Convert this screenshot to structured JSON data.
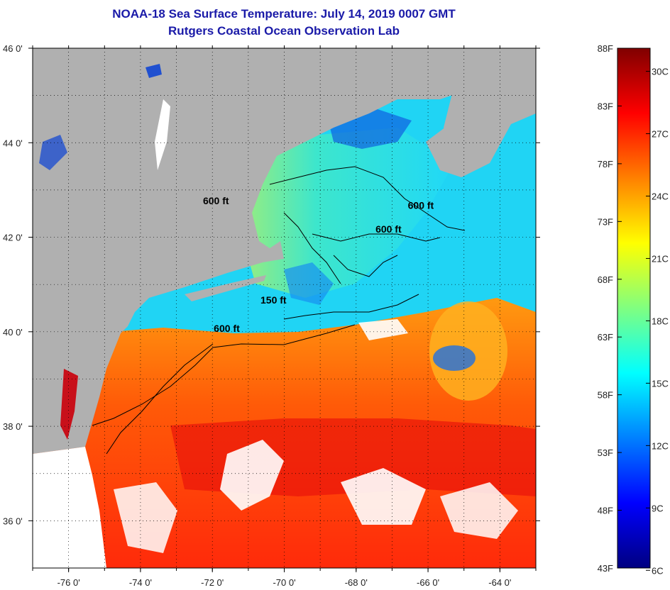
{
  "title": {
    "line1": "NOAA-18 Sea Surface Temperature:  July 14, 2019 0007 GMT",
    "line2": "Rutgers Coastal Ocean Observation Lab"
  },
  "map": {
    "lon_range": [
      -77,
      -63
    ],
    "lat_range": [
      35,
      46
    ],
    "lon_ticks": [
      {
        "value": -76,
        "label": "-76 0'"
      },
      {
        "value": -74,
        "label": "-74 0'"
      },
      {
        "value": -72,
        "label": "-72 0'"
      },
      {
        "value": -70,
        "label": "-70 0'"
      },
      {
        "value": -68,
        "label": "-68 0'"
      },
      {
        "value": -66,
        "label": "-66 0'"
      },
      {
        "value": -64,
        "label": "-64 0'"
      }
    ],
    "lat_ticks": [
      {
        "value": 46,
        "label": "46 0'"
      },
      {
        "value": 44,
        "label": "44 0'"
      },
      {
        "value": 42,
        "label": "42 0'"
      },
      {
        "value": 40,
        "label": "40 0'"
      },
      {
        "value": 38,
        "label": "38 0'"
      },
      {
        "value": 36,
        "label": "36 0'"
      }
    ],
    "grid": "dotted",
    "land_color": "#b0b0b0",
    "cloud_color": "#ffffff",
    "contour_labels": [
      {
        "text": "600 ft",
        "lon": -71.9,
        "lat": 42.7
      },
      {
        "text": "600 ft",
        "lon": -66.2,
        "lat": 42.6
      },
      {
        "text": "600 ft",
        "lon": -67.1,
        "lat": 42.1
      },
      {
        "text": "150 ft",
        "lon": -70.3,
        "lat": 40.6
      },
      {
        "text": "600 ft",
        "lon": -71.6,
        "lat": 40.0
      }
    ]
  },
  "colorbar": {
    "fahrenheit_ticks": [
      "88F",
      "83F",
      "78F",
      "73F",
      "68F",
      "63F",
      "58F",
      "53F",
      "48F",
      "43F"
    ],
    "celsius_ticks": [
      {
        "value": 30,
        "label": "30C"
      },
      {
        "value": 27,
        "label": "27C"
      },
      {
        "value": 24,
        "label": "24C"
      },
      {
        "value": 21,
        "label": "21C"
      },
      {
        "value": 18,
        "label": "18C"
      },
      {
        "value": 15,
        "label": "15C"
      },
      {
        "value": 12,
        "label": "12C"
      },
      {
        "value": 9,
        "label": "9C"
      },
      {
        "value": 6,
        "label": "6C"
      }
    ],
    "range_f": [
      43,
      88
    ],
    "colors": [
      "#000080",
      "#0000ff",
      "#0080ff",
      "#00ffff",
      "#80ff80",
      "#ffff00",
      "#ff8000",
      "#ff0000",
      "#800000"
    ]
  }
}
